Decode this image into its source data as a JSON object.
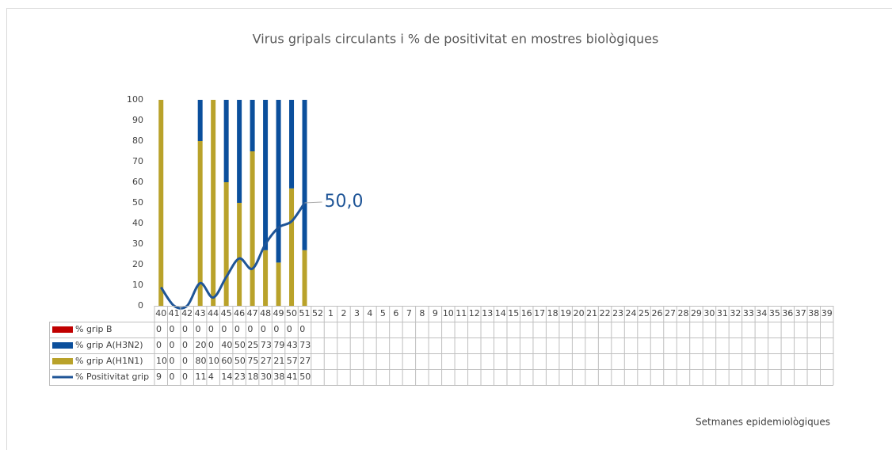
{
  "chart_data": {
    "type": "bar",
    "title": "Virus gripals circulants i % de positivitat en mostres biològiques",
    "x_label": "Setmanes epidemiològiques",
    "categories": [
      "40",
      "41",
      "42",
      "43",
      "44",
      "45",
      "46",
      "47",
      "48",
      "49",
      "50",
      "51",
      "52",
      "1",
      "2",
      "3",
      "4",
      "5",
      "6",
      "7",
      "8",
      "9",
      "10",
      "11",
      "12",
      "13",
      "14",
      "15",
      "16",
      "17",
      "18",
      "19",
      "20",
      "21",
      "22",
      "23",
      "24",
      "25",
      "26",
      "27",
      "28",
      "29",
      "30",
      "31",
      "32",
      "33",
      "34",
      "35",
      "36",
      "37",
      "38",
      "39"
    ],
    "ylim": [
      0,
      100
    ],
    "yticks": [
      0,
      10,
      20,
      30,
      40,
      50,
      60,
      70,
      80,
      90,
      100
    ],
    "stacked": true,
    "series": [
      {
        "name": "% grip  B",
        "color": "#c00000",
        "type": "bar",
        "values": [
          0,
          0,
          0,
          0,
          0,
          0,
          0,
          0,
          0,
          0,
          0,
          0,
          null,
          null,
          null,
          null,
          null,
          null,
          null,
          null,
          null,
          null,
          null,
          null,
          null,
          null,
          null,
          null,
          null,
          null,
          null,
          null,
          null,
          null,
          null,
          null,
          null,
          null,
          null,
          null,
          null,
          null,
          null,
          null,
          null,
          null,
          null,
          null,
          null,
          null,
          null,
          null
        ]
      },
      {
        "name": "% grip A(H3N2)",
        "color": "#0b4f9c",
        "type": "bar",
        "values": [
          0,
          0,
          0,
          20,
          0,
          40,
          50,
          25,
          73,
          79,
          43,
          73,
          null,
          null,
          null,
          null,
          null,
          null,
          null,
          null,
          null,
          null,
          null,
          null,
          null,
          null,
          null,
          null,
          null,
          null,
          null,
          null,
          null,
          null,
          null,
          null,
          null,
          null,
          null,
          null,
          null,
          null,
          null,
          null,
          null,
          null,
          null,
          null,
          null,
          null,
          null,
          null
        ]
      },
      {
        "name": "% grip A(H1N1)",
        "color": "#b9a22a",
        "type": "bar",
        "values": [
          100,
          0,
          0,
          80,
          100,
          60,
          50,
          75,
          27,
          21,
          57,
          27,
          null,
          null,
          null,
          null,
          null,
          null,
          null,
          null,
          null,
          null,
          null,
          null,
          null,
          null,
          null,
          null,
          null,
          null,
          null,
          null,
          null,
          null,
          null,
          null,
          null,
          null,
          null,
          null,
          null,
          null,
          null,
          null,
          null,
          null,
          null,
          null,
          null,
          null,
          null,
          null
        ]
      },
      {
        "name": "% Positivitat grip",
        "color": "#1f5597",
        "type": "line",
        "values": [
          9,
          0,
          0,
          11,
          4,
          14,
          23,
          18,
          30,
          38,
          41,
          50,
          null,
          null,
          null,
          null,
          null,
          null,
          null,
          null,
          null,
          null,
          null,
          null,
          null,
          null,
          null,
          null,
          null,
          null,
          null,
          null,
          null,
          null,
          null,
          null,
          null,
          null,
          null,
          null,
          null,
          null,
          null,
          null,
          null,
          null,
          null,
          null,
          null,
          null,
          null,
          null
        ],
        "value_labels": [
          null,
          null,
          null,
          null,
          null,
          null,
          null,
          null,
          null,
          null,
          null,
          "50,0",
          null,
          null,
          null,
          null,
          null,
          null,
          null,
          null,
          null,
          null,
          null,
          null,
          null,
          null,
          null,
          null,
          null,
          null,
          null,
          null,
          null,
          null,
          null,
          null,
          null,
          null,
          null,
          null,
          null,
          null,
          null,
          null,
          null,
          null,
          null,
          null,
          null,
          null,
          null,
          null
        ]
      }
    ]
  }
}
